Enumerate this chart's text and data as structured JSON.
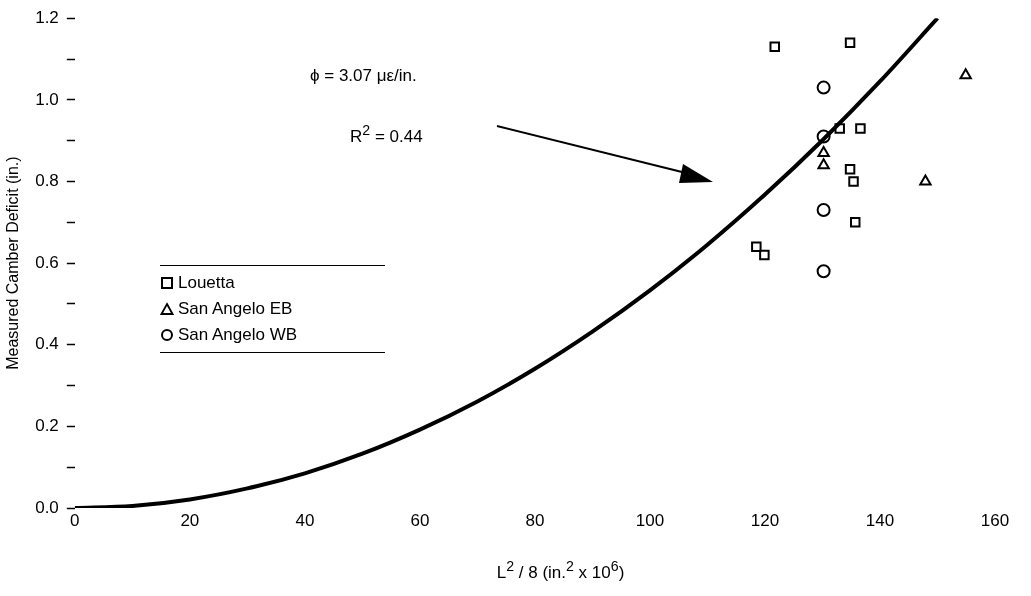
{
  "chart_data": {
    "type": "scatter",
    "xlabel": "L$^{2}$ / 8   (in.$^{2}$ x 10$^{6}$)",
    "ylabel": "Measured Camber Deficit (in.)",
    "annotations": [
      "ϕ = 3.07 με/in.",
      "R$^{2}$ = 0.44"
    ],
    "xlim": [
      0,
      160
    ],
    "xticks": [
      0,
      20,
      40,
      60,
      80,
      100,
      120,
      140,
      160
    ],
    "ylim": [
      0,
      1.2
    ],
    "yticks": [
      {
        "value": 0,
        "label": "0.0"
      },
      {
        "value": 0.1,
        "label": null
      },
      {
        "value": 0.2,
        "label": "0.2"
      },
      {
        "value": 0.3,
        "label": null
      },
      {
        "value": 0.4,
        "label": "0.4"
      },
      {
        "value": 0.5,
        "label": null
      },
      {
        "value": 0.6,
        "label": "0.6"
      },
      {
        "value": 0.7,
        "label": null
      },
      {
        "value": 0.8,
        "label": "0.8"
      },
      {
        "value": 0.9,
        "label": null
      },
      {
        "value": 1.0,
        "label": "1.0"
      },
      {
        "value": 1.1,
        "label": null
      },
      {
        "value": 1.2,
        "label": "1.2"
      }
    ],
    "grid": false,
    "legend": "left",
    "series": [
      {
        "name": "Louetta",
        "color": "#000000",
        "marker": "square",
        "x": [
          121.7,
          134.8,
          133.0,
          136.6,
          134.8,
          135.4,
          135.7,
          118.5,
          119.9
        ],
        "values": [
          1.13,
          1.14,
          0.93,
          0.93,
          0.83,
          0.8,
          0.7,
          0.64,
          0.62
        ]
      },
      {
        "name": "San Angelo EB",
        "color": "#000000",
        "marker": "triangle",
        "x": [
          154.9,
          130.2,
          130.2,
          147.9
        ],
        "values": [
          1.06,
          0.87,
          0.84,
          0.8
        ]
      },
      {
        "name": "San Angelo WB",
        "color": "#000000",
        "marker": "circle",
        "x": [
          130.2,
          130.2,
          130.2,
          130.2
        ],
        "values": [
          1.03,
          0.91,
          0.73,
          0.58
        ]
      },
      {
        "type": "line",
        "color": "#000000",
        "marker": "none",
        "line_style": "solid",
        "x": [
          0,
          10,
          20,
          30,
          40,
          50,
          60,
          70,
          80,
          90,
          100,
          110,
          120,
          130,
          140,
          150
        ],
        "values": [
          0,
          0.005,
          0.021,
          0.048,
          0.085,
          0.133,
          0.192,
          0.261,
          0.341,
          0.432,
          0.533,
          0.645,
          0.768,
          0.901,
          1.045,
          1.2
        ]
      }
    ]
  }
}
